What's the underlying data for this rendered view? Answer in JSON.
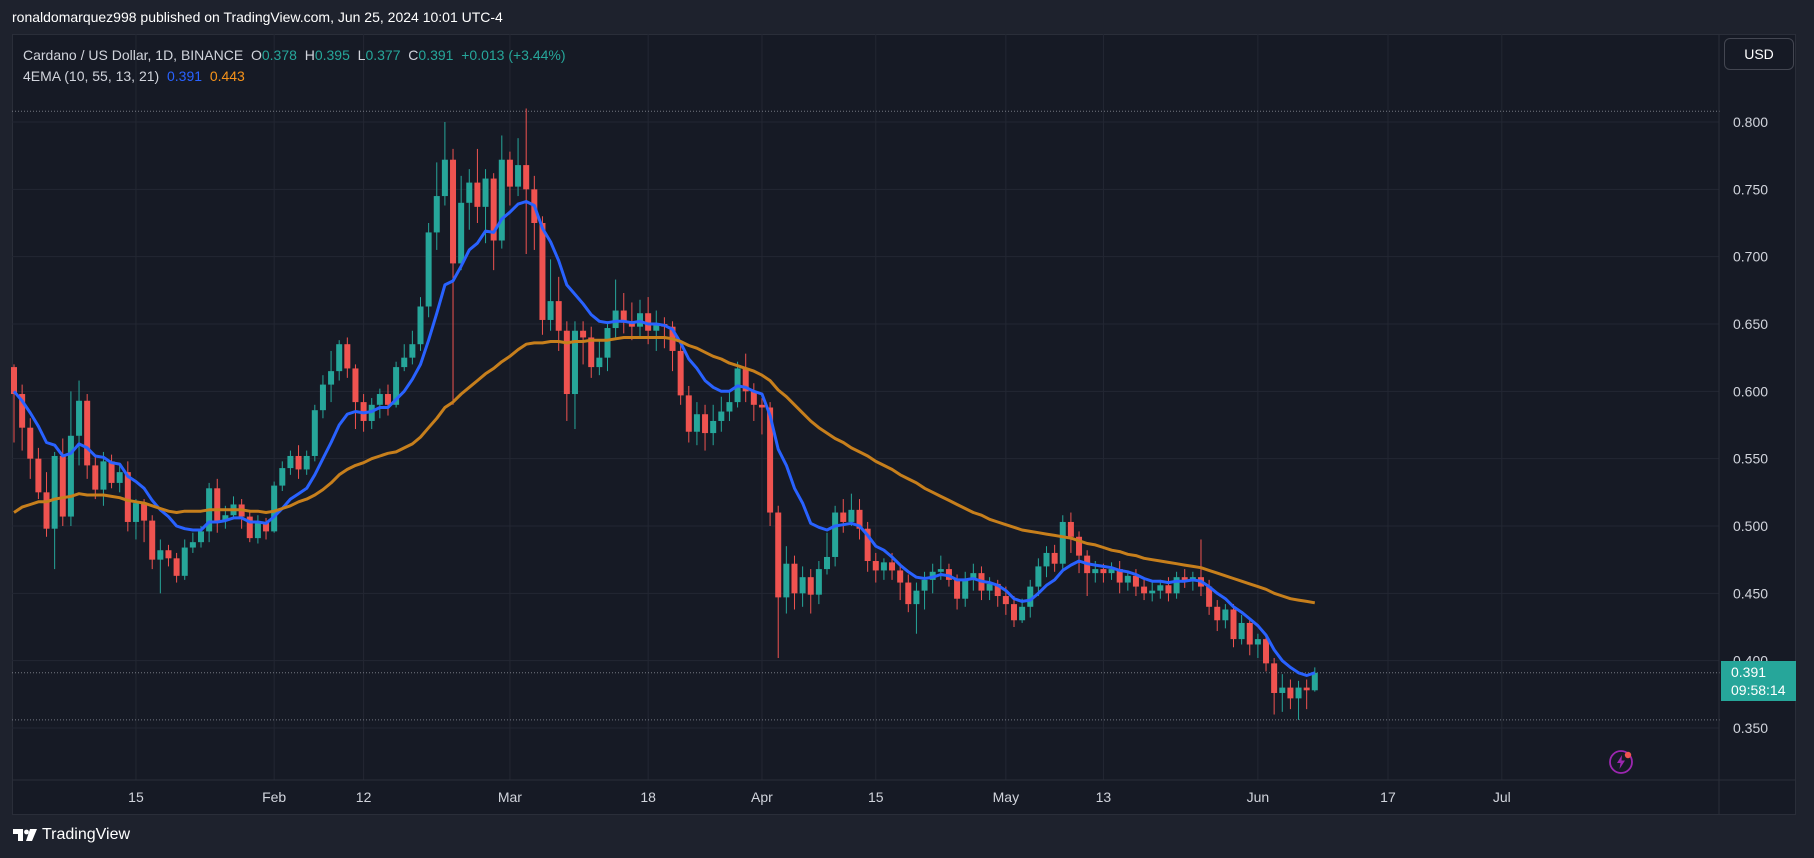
{
  "header": {
    "publish_line": "ronaldomarquez998 published on TradingView.com, Jun 25, 2024 10:01 UTC-4"
  },
  "legend": {
    "symbol": "Cardano / US Dollar, 1D, BINANCE",
    "o_label": "O",
    "o_value": "0.378",
    "h_label": "H",
    "h_value": "0.395",
    "l_label": "L",
    "l_value": "0.377",
    "c_label": "C",
    "c_value": "0.391",
    "change": "+0.013 (+3.44%)",
    "indicator": "4EMA (10, 55, 13, 21)",
    "ema_fast_value": "0.391",
    "ema_slow_value": "0.443"
  },
  "toolbar": {
    "currency_button": "USD"
  },
  "price_badge": {
    "price": "0.391",
    "countdown": "09:58:14"
  },
  "footer": {
    "brand": "TradingView"
  },
  "colors": {
    "up": "#26a69a",
    "down": "#ef5350",
    "ema_fast": "#2962ff",
    "ema_slow": "#c77f1c",
    "background": "#161a25",
    "grid": "#232733",
    "text": "#d1d4dc"
  },
  "chart_data": {
    "type": "candlestick",
    "title": "Cardano / US Dollar, 1D, BINANCE",
    "ylim": [
      0.31,
      0.83
    ],
    "y_ticks": [
      "0.350",
      "0.400",
      "0.450",
      "0.500",
      "0.550",
      "0.600",
      "0.650",
      "0.700",
      "0.750",
      "0.800"
    ],
    "x_ticks": [
      "15",
      "Feb",
      "12",
      "Mar",
      "18",
      "Apr",
      "15",
      "May",
      "13",
      "Jun",
      "17",
      "Jul"
    ],
    "x_tick_days": [
      15,
      32,
      43,
      61,
      78,
      92,
      106,
      122,
      134,
      153,
      169,
      183
    ],
    "start_date": "2024-01-06",
    "horizontal_lines": [
      0.808,
      0.391,
      0.356
    ],
    "candles": [
      [
        0.618,
        0.598,
        0.62,
        0.562
      ],
      [
        0.598,
        0.573,
        0.605,
        0.556
      ],
      [
        0.573,
        0.55,
        0.58,
        0.535
      ],
      [
        0.55,
        0.525,
        0.558,
        0.52
      ],
      [
        0.525,
        0.498,
        0.54,
        0.492
      ],
      [
        0.498,
        0.552,
        0.555,
        0.468
      ],
      [
        0.552,
        0.507,
        0.565,
        0.5
      ],
      [
        0.507,
        0.567,
        0.6,
        0.5
      ],
      [
        0.567,
        0.593,
        0.608,
        0.545
      ],
      [
        0.593,
        0.545,
        0.598,
        0.535
      ],
      [
        0.545,
        0.527,
        0.552,
        0.52
      ],
      [
        0.527,
        0.548,
        0.555,
        0.515
      ],
      [
        0.548,
        0.532,
        0.553,
        0.528
      ],
      [
        0.532,
        0.54,
        0.545,
        0.525
      ],
      [
        0.54,
        0.503,
        0.548,
        0.496
      ],
      [
        0.503,
        0.517,
        0.52,
        0.49
      ],
      [
        0.517,
        0.504,
        0.52,
        0.488
      ],
      [
        0.504,
        0.475,
        0.508,
        0.468
      ],
      [
        0.475,
        0.482,
        0.49,
        0.45
      ],
      [
        0.482,
        0.476,
        0.486,
        0.47
      ],
      [
        0.476,
        0.463,
        0.48,
        0.458
      ],
      [
        0.463,
        0.484,
        0.49,
        0.46
      ],
      [
        0.484,
        0.488,
        0.495,
        0.48
      ],
      [
        0.488,
        0.496,
        0.5,
        0.484
      ],
      [
        0.496,
        0.528,
        0.532,
        0.488
      ],
      [
        0.528,
        0.504,
        0.535,
        0.495
      ],
      [
        0.504,
        0.508,
        0.515,
        0.498
      ],
      [
        0.508,
        0.516,
        0.522,
        0.505
      ],
      [
        0.516,
        0.507,
        0.52,
        0.498
      ],
      [
        0.507,
        0.491,
        0.512,
        0.488
      ],
      [
        0.491,
        0.503,
        0.508,
        0.487
      ],
      [
        0.503,
        0.496,
        0.506,
        0.49
      ],
      [
        0.496,
        0.53,
        0.533,
        0.495
      ],
      [
        0.53,
        0.543,
        0.548,
        0.526
      ],
      [
        0.543,
        0.552,
        0.556,
        0.538
      ],
      [
        0.552,
        0.542,
        0.56,
        0.535
      ],
      [
        0.542,
        0.552,
        0.556,
        0.538
      ],
      [
        0.552,
        0.586,
        0.59,
        0.548
      ],
      [
        0.586,
        0.605,
        0.612,
        0.58
      ],
      [
        0.605,
        0.615,
        0.63,
        0.592
      ],
      [
        0.615,
        0.635,
        0.638,
        0.608
      ],
      [
        0.635,
        0.617,
        0.64,
        0.61
      ],
      [
        0.617,
        0.592,
        0.62,
        0.572
      ],
      [
        0.592,
        0.578,
        0.598,
        0.57
      ],
      [
        0.578,
        0.59,
        0.595,
        0.572
      ],
      [
        0.59,
        0.598,
        0.602,
        0.58
      ],
      [
        0.598,
        0.59,
        0.605,
        0.582
      ],
      [
        0.59,
        0.618,
        0.622,
        0.588
      ],
      [
        0.618,
        0.625,
        0.635,
        0.615
      ],
      [
        0.625,
        0.635,
        0.645,
        0.62
      ],
      [
        0.635,
        0.663,
        0.67,
        0.63
      ],
      [
        0.663,
        0.718,
        0.725,
        0.655
      ],
      [
        0.718,
        0.745,
        0.77,
        0.705
      ],
      [
        0.745,
        0.772,
        0.8,
        0.738
      ],
      [
        0.772,
        0.695,
        0.78,
        0.59
      ],
      [
        0.695,
        0.74,
        0.76,
        0.69
      ],
      [
        0.74,
        0.755,
        0.765,
        0.72
      ],
      [
        0.755,
        0.737,
        0.78,
        0.725
      ],
      [
        0.737,
        0.758,
        0.765,
        0.71
      ],
      [
        0.758,
        0.712,
        0.762,
        0.69
      ],
      [
        0.712,
        0.772,
        0.79,
        0.706
      ],
      [
        0.772,
        0.752,
        0.778,
        0.738
      ],
      [
        0.752,
        0.768,
        0.788,
        0.745
      ],
      [
        0.768,
        0.75,
        0.81,
        0.702
      ],
      [
        0.75,
        0.725,
        0.76,
        0.705
      ],
      [
        0.725,
        0.653,
        0.73,
        0.642
      ],
      [
        0.653,
        0.667,
        0.698,
        0.645
      ],
      [
        0.667,
        0.645,
        0.685,
        0.63
      ],
      [
        0.645,
        0.598,
        0.652,
        0.578
      ],
      [
        0.598,
        0.645,
        0.652,
        0.572
      ],
      [
        0.645,
        0.64,
        0.652,
        0.62
      ],
      [
        0.64,
        0.618,
        0.648,
        0.61
      ],
      [
        0.618,
        0.625,
        0.638,
        0.612
      ],
      [
        0.625,
        0.647,
        0.652,
        0.615
      ],
      [
        0.647,
        0.66,
        0.683,
        0.64
      ],
      [
        0.66,
        0.651,
        0.673,
        0.643
      ],
      [
        0.651,
        0.648,
        0.666,
        0.638
      ],
      [
        0.648,
        0.658,
        0.668,
        0.64
      ],
      [
        0.658,
        0.645,
        0.67,
        0.635
      ],
      [
        0.645,
        0.65,
        0.66,
        0.63
      ],
      [
        0.65,
        0.648,
        0.655,
        0.632
      ],
      [
        0.648,
        0.63,
        0.652,
        0.615
      ],
      [
        0.63,
        0.597,
        0.636,
        0.59
      ],
      [
        0.597,
        0.57,
        0.604,
        0.562
      ],
      [
        0.57,
        0.583,
        0.592,
        0.56
      ],
      [
        0.583,
        0.569,
        0.59,
        0.556
      ],
      [
        0.569,
        0.578,
        0.59,
        0.56
      ],
      [
        0.578,
        0.585,
        0.596,
        0.57
      ],
      [
        0.585,
        0.592,
        0.6,
        0.578
      ],
      [
        0.592,
        0.617,
        0.622,
        0.588
      ],
      [
        0.617,
        0.6,
        0.628,
        0.592
      ],
      [
        0.6,
        0.59,
        0.606,
        0.578
      ],
      [
        0.59,
        0.588,
        0.595,
        0.568
      ],
      [
        0.588,
        0.51,
        0.592,
        0.5
      ],
      [
        0.51,
        0.447,
        0.515,
        0.402
      ],
      [
        0.447,
        0.472,
        0.485,
        0.435
      ],
      [
        0.472,
        0.45,
        0.478,
        0.438
      ],
      [
        0.45,
        0.462,
        0.47,
        0.44
      ],
      [
        0.462,
        0.449,
        0.468,
        0.435
      ],
      [
        0.449,
        0.468,
        0.474,
        0.442
      ],
      [
        0.468,
        0.477,
        0.495,
        0.464
      ],
      [
        0.477,
        0.51,
        0.515,
        0.47
      ],
      [
        0.51,
        0.503,
        0.52,
        0.495
      ],
      [
        0.503,
        0.512,
        0.524,
        0.5
      ],
      [
        0.512,
        0.498,
        0.52,
        0.49
      ],
      [
        0.498,
        0.474,
        0.503,
        0.466
      ],
      [
        0.474,
        0.467,
        0.48,
        0.458
      ],
      [
        0.467,
        0.473,
        0.476,
        0.46
      ],
      [
        0.473,
        0.467,
        0.48,
        0.46
      ],
      [
        0.467,
        0.458,
        0.472,
        0.445
      ],
      [
        0.458,
        0.442,
        0.464,
        0.436
      ],
      [
        0.442,
        0.452,
        0.458,
        0.42
      ],
      [
        0.452,
        0.46,
        0.466,
        0.438
      ],
      [
        0.46,
        0.466,
        0.472,
        0.45
      ],
      [
        0.466,
        0.468,
        0.478,
        0.46
      ],
      [
        0.468,
        0.46,
        0.472,
        0.455
      ],
      [
        0.46,
        0.446,
        0.464,
        0.438
      ],
      [
        0.446,
        0.46,
        0.466,
        0.44
      ],
      [
        0.46,
        0.465,
        0.472,
        0.452
      ],
      [
        0.465,
        0.452,
        0.47,
        0.445
      ],
      [
        0.452,
        0.457,
        0.462,
        0.445
      ],
      [
        0.457,
        0.448,
        0.46,
        0.44
      ],
      [
        0.448,
        0.442,
        0.455,
        0.434
      ],
      [
        0.442,
        0.43,
        0.448,
        0.425
      ],
      [
        0.43,
        0.44,
        0.446,
        0.428
      ],
      [
        0.44,
        0.455,
        0.46,
        0.432
      ],
      [
        0.455,
        0.47,
        0.476,
        0.448
      ],
      [
        0.47,
        0.48,
        0.485,
        0.462
      ],
      [
        0.48,
        0.472,
        0.486,
        0.466
      ],
      [
        0.472,
        0.503,
        0.508,
        0.468
      ],
      [
        0.503,
        0.492,
        0.51,
        0.48
      ],
      [
        0.492,
        0.478,
        0.496,
        0.465
      ],
      [
        0.478,
        0.465,
        0.482,
        0.448
      ],
      [
        0.465,
        0.468,
        0.474,
        0.458
      ],
      [
        0.468,
        0.465,
        0.472,
        0.458
      ],
      [
        0.465,
        0.468,
        0.473,
        0.46
      ],
      [
        0.468,
        0.458,
        0.474,
        0.45
      ],
      [
        0.458,
        0.463,
        0.466,
        0.452
      ],
      [
        0.463,
        0.455,
        0.468,
        0.448
      ],
      [
        0.455,
        0.45,
        0.46,
        0.445
      ],
      [
        0.45,
        0.452,
        0.458,
        0.444
      ],
      [
        0.452,
        0.456,
        0.46,
        0.446
      ],
      [
        0.456,
        0.45,
        0.462,
        0.444
      ],
      [
        0.45,
        0.462,
        0.466,
        0.446
      ],
      [
        0.462,
        0.459,
        0.468,
        0.454
      ],
      [
        0.459,
        0.462,
        0.466,
        0.452
      ],
      [
        0.462,
        0.455,
        0.49,
        0.448
      ],
      [
        0.455,
        0.44,
        0.46,
        0.434
      ],
      [
        0.44,
        0.43,
        0.445,
        0.422
      ],
      [
        0.43,
        0.438,
        0.442,
        0.424
      ],
      [
        0.438,
        0.416,
        0.442,
        0.41
      ],
      [
        0.416,
        0.428,
        0.434,
        0.412
      ],
      [
        0.428,
        0.412,
        0.432,
        0.404
      ],
      [
        0.412,
        0.416,
        0.42,
        0.402
      ],
      [
        0.416,
        0.398,
        0.42,
        0.392
      ],
      [
        0.398,
        0.376,
        0.402,
        0.36
      ],
      [
        0.376,
        0.38,
        0.39,
        0.362
      ],
      [
        0.38,
        0.372,
        0.386,
        0.364
      ],
      [
        0.372,
        0.38,
        0.385,
        0.356
      ],
      [
        0.38,
        0.378,
        0.386,
        0.364
      ],
      [
        0.378,
        0.391,
        0.395,
        0.377
      ]
    ],
    "series": [
      {
        "name": "EMA",
        "color": "#2962ff",
        "values": [
          0.6,
          0.593,
          0.584,
          0.574,
          0.562,
          0.56,
          0.552,
          0.554,
          0.561,
          0.558,
          0.552,
          0.551,
          0.547,
          0.546,
          0.537,
          0.533,
          0.528,
          0.519,
          0.512,
          0.507,
          0.5,
          0.498,
          0.497,
          0.497,
          0.503,
          0.503,
          0.504,
          0.506,
          0.506,
          0.503,
          0.503,
          0.502,
          0.507,
          0.513,
          0.52,
          0.524,
          0.528,
          0.538,
          0.55,
          0.562,
          0.575,
          0.583,
          0.585,
          0.584,
          0.585,
          0.588,
          0.588,
          0.594,
          0.6,
          0.609,
          0.62,
          0.638,
          0.658,
          0.679,
          0.682,
          0.693,
          0.705,
          0.71,
          0.719,
          0.718,
          0.728,
          0.733,
          0.739,
          0.741,
          0.738,
          0.721,
          0.711,
          0.697,
          0.679,
          0.672,
          0.665,
          0.657,
          0.652,
          0.651,
          0.652,
          0.652,
          0.651,
          0.652,
          0.65,
          0.65,
          0.649,
          0.646,
          0.636,
          0.624,
          0.617,
          0.608,
          0.603,
          0.6,
          0.6,
          0.604,
          0.603,
          0.6,
          0.598,
          0.582,
          0.557,
          0.545,
          0.528,
          0.517,
          0.502,
          0.499,
          0.497,
          0.5,
          0.501,
          0.502,
          0.5,
          0.493,
          0.485,
          0.482,
          0.477,
          0.471,
          0.466,
          0.462,
          0.461,
          0.462,
          0.464,
          0.463,
          0.46,
          0.46,
          0.461,
          0.459,
          0.458,
          0.456,
          0.452,
          0.446,
          0.444,
          0.445,
          0.45,
          0.456,
          0.46,
          0.467,
          0.471,
          0.474,
          0.472,
          0.471,
          0.47,
          0.469,
          0.467,
          0.466,
          0.464,
          0.461,
          0.459,
          0.459,
          0.458,
          0.459,
          0.459,
          0.46,
          0.459,
          0.455,
          0.45,
          0.446,
          0.44,
          0.436,
          0.431,
          0.426,
          0.419,
          0.408,
          0.4,
          0.395,
          0.391,
          0.389,
          0.391
        ]
      },
      {
        "name": "EMA",
        "color": "#c77f1c",
        "values": [
          0.51,
          0.514,
          0.516,
          0.518,
          0.518,
          0.52,
          0.521,
          0.522,
          0.524,
          0.523,
          0.523,
          0.523,
          0.522,
          0.521,
          0.519,
          0.518,
          0.517,
          0.515,
          0.513,
          0.511,
          0.51,
          0.511,
          0.511,
          0.511,
          0.512,
          0.512,
          0.512,
          0.512,
          0.512,
          0.511,
          0.511,
          0.51,
          0.511,
          0.513,
          0.515,
          0.518,
          0.52,
          0.523,
          0.527,
          0.532,
          0.538,
          0.542,
          0.545,
          0.547,
          0.55,
          0.552,
          0.554,
          0.555,
          0.558,
          0.561,
          0.566,
          0.573,
          0.58,
          0.588,
          0.592,
          0.598,
          0.603,
          0.608,
          0.613,
          0.617,
          0.622,
          0.626,
          0.631,
          0.635,
          0.636,
          0.636,
          0.637,
          0.637,
          0.636,
          0.637,
          0.637,
          0.638,
          0.638,
          0.638,
          0.639,
          0.64,
          0.64,
          0.64,
          0.64,
          0.64,
          0.64,
          0.639,
          0.637,
          0.634,
          0.632,
          0.629,
          0.626,
          0.624,
          0.621,
          0.619,
          0.617,
          0.615,
          0.612,
          0.608,
          0.601,
          0.596,
          0.59,
          0.584,
          0.578,
          0.573,
          0.569,
          0.565,
          0.562,
          0.558,
          0.555,
          0.552,
          0.548,
          0.545,
          0.542,
          0.538,
          0.535,
          0.532,
          0.528,
          0.525,
          0.522,
          0.519,
          0.516,
          0.513,
          0.51,
          0.508,
          0.505,
          0.503,
          0.501,
          0.499,
          0.497,
          0.496,
          0.495,
          0.494,
          0.493,
          0.492,
          0.491,
          0.489,
          0.487,
          0.486,
          0.484,
          0.482,
          0.481,
          0.479,
          0.478,
          0.476,
          0.475,
          0.474,
          0.473,
          0.472,
          0.471,
          0.47,
          0.469,
          0.467,
          0.465,
          0.463,
          0.461,
          0.459,
          0.457,
          0.455,
          0.453,
          0.45,
          0.448,
          0.446,
          0.445,
          0.444,
          0.443
        ]
      }
    ]
  }
}
